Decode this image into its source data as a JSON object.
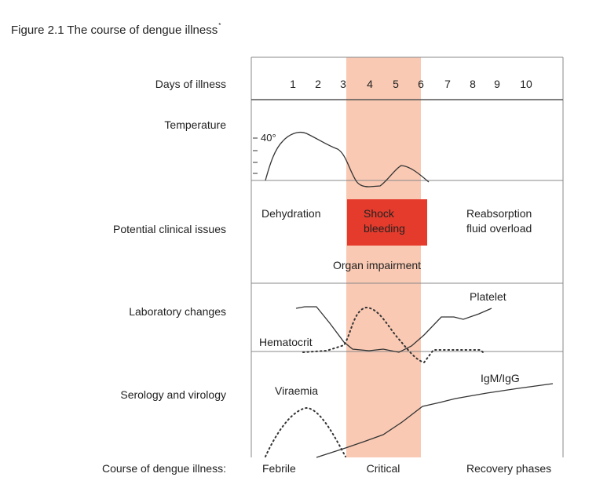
{
  "figure": {
    "title": "Figure 2.1 The course of dengue illness",
    "title_marker": "*"
  },
  "rows": {
    "days_label": "Days of illness",
    "temperature_label": "Temperature",
    "clinical_label": "Potential clinical issues",
    "laboratory_label": "Laboratory changes",
    "serology_label": "Serology and virology",
    "course_label": "Course of dengue illness:"
  },
  "days": [
    "1",
    "2",
    "3",
    "4",
    "5",
    "6",
    "7",
    "8",
    "9",
    "10"
  ],
  "temperature": {
    "peak_label": "40°"
  },
  "clinical": {
    "dehydration": "Dehydration",
    "shock_line1": "Shock",
    "shock_line2": "bleeding",
    "reabsorption_line1": "Reabsorption",
    "reabsorption_line2": "fluid overload",
    "organ": "Organ impairment"
  },
  "laboratory": {
    "platelet": "Platelet",
    "hematocrit": "Hematocrit"
  },
  "serology": {
    "viraemia": "Viraemia",
    "igm": "IgM/IgG"
  },
  "phases": {
    "febrile": "Febrile",
    "critical": "Critical",
    "recovery": "Recovery phases"
  },
  "colors": {
    "critical_band": "#f9c9b3",
    "shock_box": "#e53b2c",
    "lines": "#333333",
    "frame": "#888888"
  }
}
